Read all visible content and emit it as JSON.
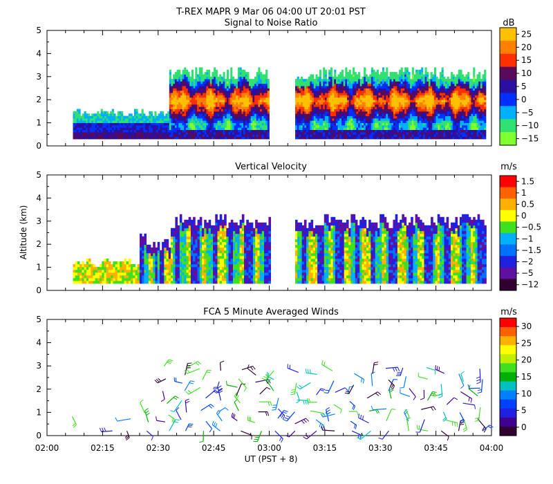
{
  "header": {
    "title": "T-REX   MAPR   9 Mar 06   04:00 UT   20:01   PST"
  },
  "axes": {
    "ylabel": "Altitude (km)",
    "xlabel": "UT  (PST + 8)",
    "x_ticklabels": [
      "02:00",
      "02:15",
      "02:30",
      "02:45",
      "03:00",
      "03:15",
      "03:30",
      "03:45",
      "04:00"
    ],
    "y_ticklabels": [
      "0",
      "1",
      "2",
      "3",
      "4",
      "5"
    ],
    "xlim_minutes": [
      0,
      120
    ],
    "ylim_km": [
      0,
      5
    ]
  },
  "chart_data": [
    {
      "type": "heatmap",
      "title": "Signal to Noise Ratio",
      "units": "dB",
      "ylabel": "Altitude (km)",
      "ylim": [
        0,
        5
      ],
      "data_gaps_minutes": [
        [
          60,
          67
        ]
      ],
      "colorbar": {
        "labels": [
          "25",
          "20",
          "15",
          "10",
          "5",
          "0",
          "−5",
          "−10",
          "−15"
        ],
        "colors": [
          "#ffc000",
          "#ff8000",
          "#ff3000",
          "#5a0a5a",
          "#2a10a0",
          "#0030ff",
          "#00b0ff",
          "#30e070",
          "#80ff30"
        ]
      }
    },
    {
      "type": "heatmap",
      "title": "Vertical Velocity",
      "units": "m/s",
      "ylabel": "Altitude (km)",
      "ylim": [
        0,
        5
      ],
      "data_gaps_minutes": [
        [
          60,
          67
        ]
      ],
      "colorbar": {
        "labels": [
          "1.5",
          "1",
          "0.5",
          "0",
          "−0.5",
          "−1",
          "−1.5",
          "−2",
          "−5",
          "−12"
        ],
        "colors": [
          "#ff0000",
          "#ff6000",
          "#ffb000",
          "#ffff00",
          "#40e020",
          "#00b0ff",
          "#0070ff",
          "#2020e0",
          "#6010a0",
          "#300030"
        ]
      }
    },
    {
      "type": "scatter",
      "title": "FCA 5 Minute Averaged Winds",
      "units": "m/s",
      "ylabel": "Altitude (km)",
      "ylim": [
        0,
        5
      ],
      "colorbar": {
        "labels": [
          "30",
          "25",
          "20",
          "15",
          "10",
          "5",
          "0"
        ],
        "colors": [
          "#ff0000",
          "#ff6000",
          "#ffb000",
          "#ffff00",
          "#c0f000",
          "#40e020",
          "#00b000",
          "#00c0c0",
          "#0080ff",
          "#0040ff",
          "#2020e0",
          "#400090",
          "#300030"
        ]
      }
    }
  ]
}
